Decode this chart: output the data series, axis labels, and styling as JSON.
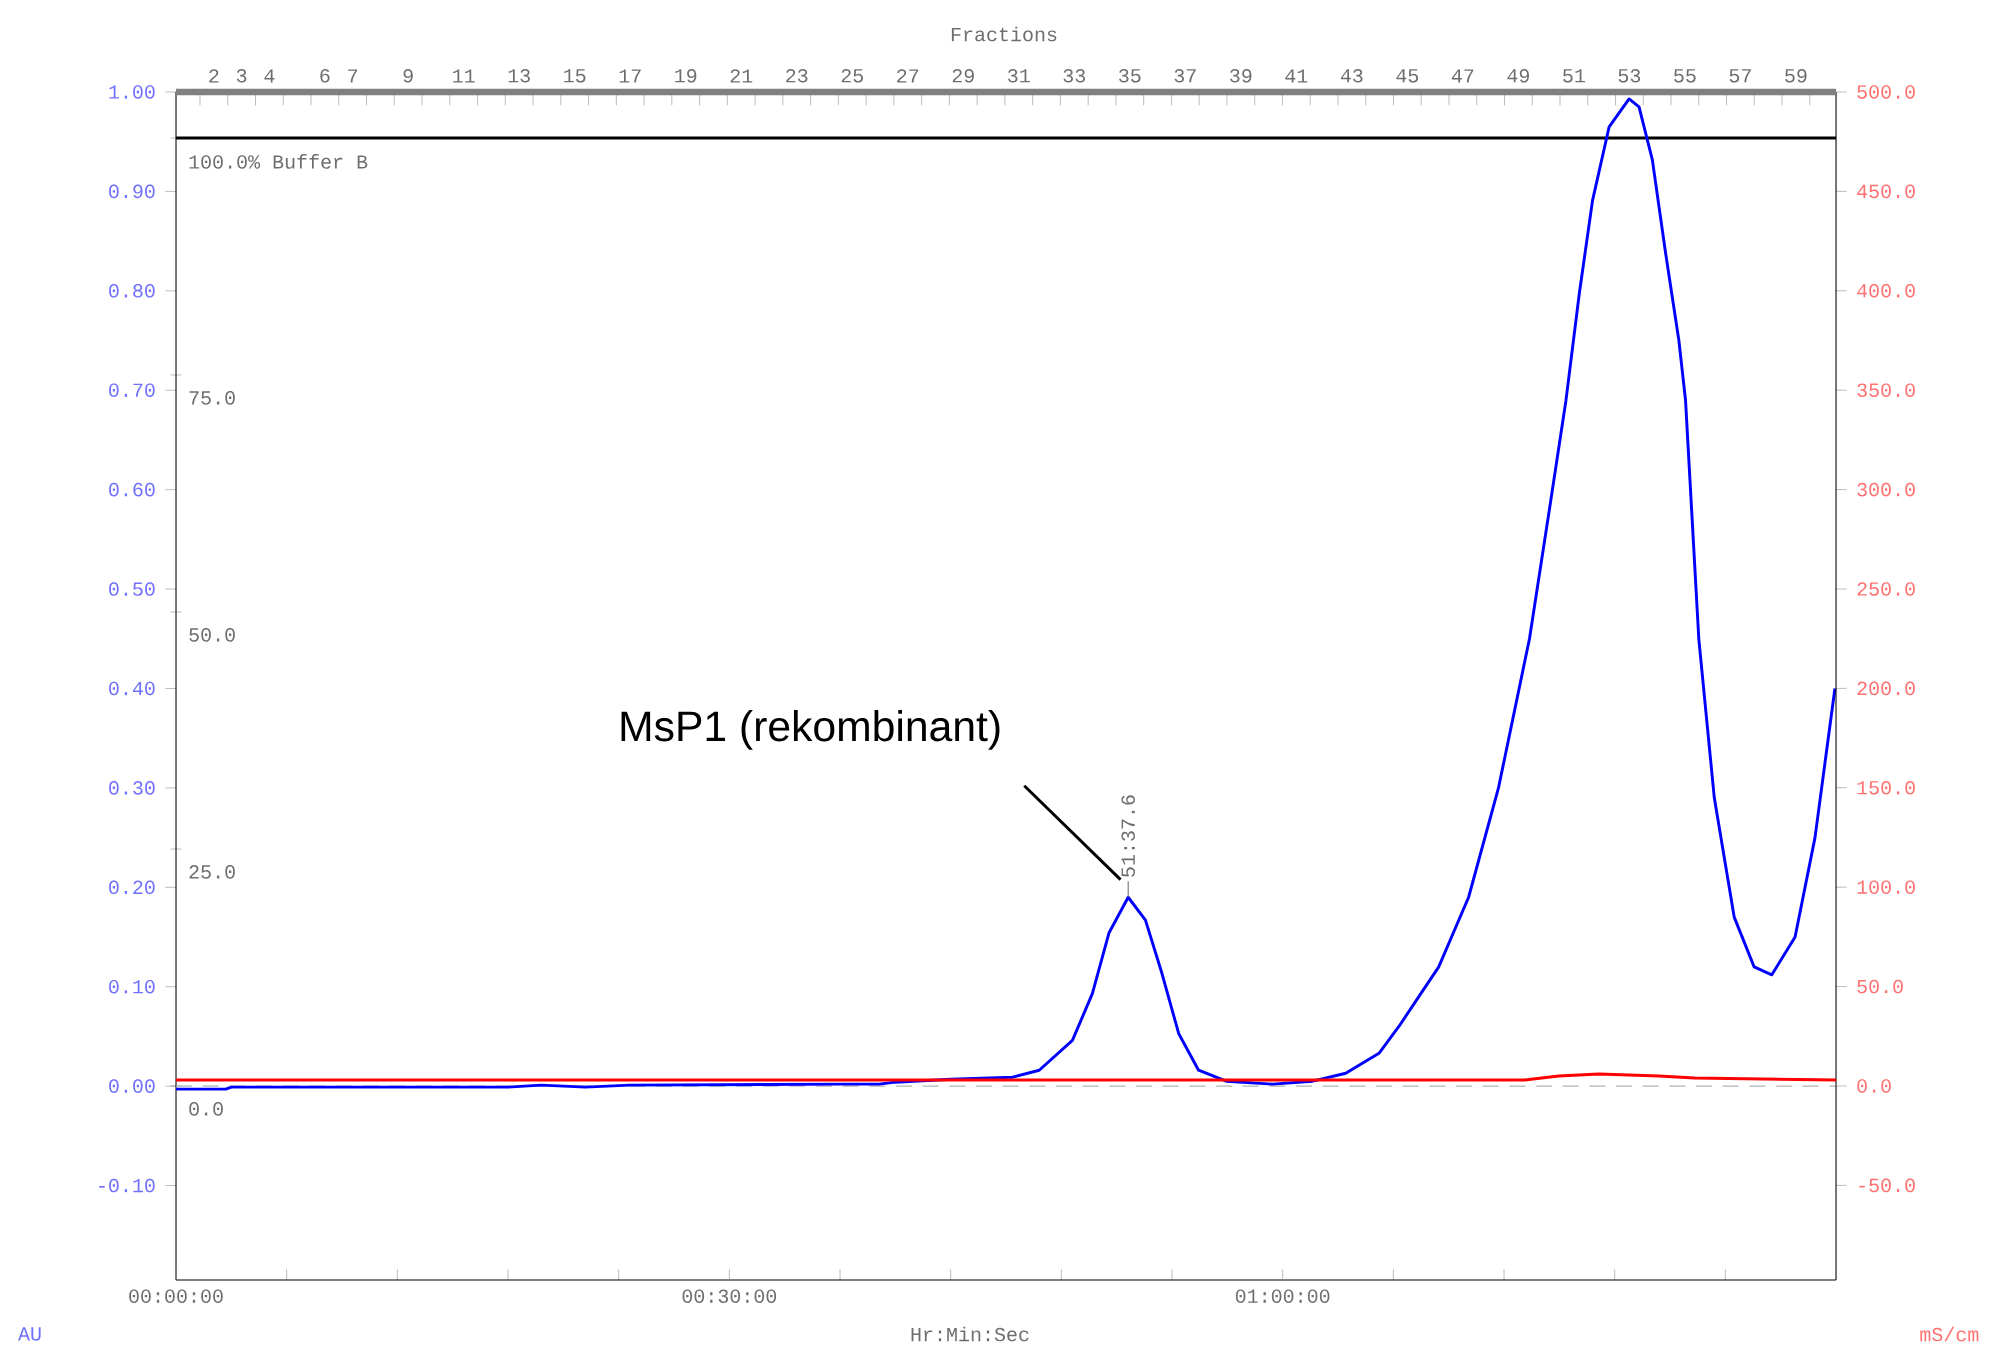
{
  "chart_data": {
    "type": "line",
    "xlabel": "Hr:Min:Sec",
    "ylabel": "AU",
    "y2label": "mS/cm",
    "x2label": "Fractions",
    "xlim": [
      0,
      1.5
    ],
    "xticks": [
      {
        "value": 0,
        "label": "00:00:00"
      },
      {
        "value": 0.1,
        "label": null
      },
      {
        "value": 0.2,
        "label": null
      },
      {
        "value": 0.3,
        "label": null
      },
      {
        "value": 0.4,
        "label": null
      },
      {
        "value": 0.5,
        "label": "00:30:00"
      },
      {
        "value": 0.6,
        "label": null
      },
      {
        "value": 0.7,
        "label": null
      },
      {
        "value": 0.8,
        "label": null
      },
      {
        "value": 0.9,
        "label": null
      },
      {
        "value": 1.0,
        "label": "01:00:00"
      },
      {
        "value": 1.1,
        "label": null
      },
      {
        "value": 1.2,
        "label": null
      },
      {
        "value": 1.3,
        "label": null
      },
      {
        "value": 1.4,
        "label": null
      }
    ],
    "x2lim": [
      0.636,
      60.445
    ],
    "x2ticks": [
      {
        "value": 1.5,
        "label": null
      },
      {
        "value": 2.5,
        "label": null
      },
      {
        "value": 3.5,
        "label": null
      },
      {
        "value": 4.5,
        "label": null
      },
      {
        "value": 5.5,
        "label": null
      },
      {
        "value": 6.5,
        "label": null
      },
      {
        "value": 7.5,
        "label": null
      },
      {
        "value": 8.5,
        "label": null
      },
      {
        "value": 9.5,
        "label": null
      },
      {
        "value": 10.5,
        "label": null
      },
      {
        "value": 11.5,
        "label": null
      },
      {
        "value": 12.5,
        "label": null
      },
      {
        "value": 13.5,
        "label": null
      },
      {
        "value": 14.5,
        "label": null
      },
      {
        "value": 15.5,
        "label": null
      },
      {
        "value": 16.5,
        "label": null
      },
      {
        "value": 17.5,
        "label": null
      },
      {
        "value": 18.5,
        "label": null
      },
      {
        "value": 19.5,
        "label": null
      },
      {
        "value": 20.5,
        "label": null
      },
      {
        "value": 21.5,
        "label": null
      },
      {
        "value": 22.5,
        "label": null
      },
      {
        "value": 23.5,
        "label": null
      },
      {
        "value": 24.5,
        "label": null
      },
      {
        "value": 25.5,
        "label": null
      },
      {
        "value": 26.5,
        "label": null
      },
      {
        "value": 27.5,
        "label": null
      },
      {
        "value": 28.5,
        "label": null
      },
      {
        "value": 29.5,
        "label": null
      },
      {
        "value": 30.5,
        "label": null
      },
      {
        "value": 31.5,
        "label": null
      },
      {
        "value": 32.5,
        "label": null
      },
      {
        "value": 33.5,
        "label": null
      },
      {
        "value": 34.5,
        "label": null
      },
      {
        "value": 35.5,
        "label": null
      },
      {
        "value": 36.5,
        "label": null
      },
      {
        "value": 37.5,
        "label": null
      },
      {
        "value": 38.5,
        "label": null
      },
      {
        "value": 39.5,
        "label": null
      },
      {
        "value": 40.5,
        "label": null
      },
      {
        "value": 41.5,
        "label": null
      },
      {
        "value": 42.5,
        "label": null
      },
      {
        "value": 43.5,
        "label": null
      },
      {
        "value": 44.5,
        "label": null
      },
      {
        "value": 45.5,
        "label": null
      },
      {
        "value": 46.5,
        "label": null
      },
      {
        "value": 47.5,
        "label": null
      },
      {
        "value": 48.5,
        "label": null
      },
      {
        "value": 49.5,
        "label": null
      },
      {
        "value": 50.5,
        "label": null
      },
      {
        "value": 51.5,
        "label": null
      },
      {
        "value": 52.5,
        "label": null
      },
      {
        "value": 53.5,
        "label": null
      },
      {
        "value": 54.5,
        "label": null
      },
      {
        "value": 55.5,
        "label": null
      },
      {
        "value": 56.5,
        "label": null
      },
      {
        "value": 57.5,
        "label": null
      },
      {
        "value": 58.5,
        "label": null
      },
      {
        "value": 59.5,
        "label": null
      },
      2,
      3,
      4,
      6,
      7,
      9,
      11,
      13,
      15,
      17,
      19,
      21,
      23,
      25,
      27,
      29,
      31,
      33,
      35,
      37,
      39,
      41,
      43,
      45,
      47,
      49,
      51,
      53,
      55,
      57,
      59
    ],
    "ylim": [
      -0.195,
      1.0
    ],
    "yticks": [
      {
        "value": -0.1,
        "label": "-0.10"
      },
      {
        "value": 0,
        "label": "0.00"
      },
      {
        "value": 0.1,
        "label": "0.10"
      },
      {
        "value": 0.2,
        "label": "0.20"
      },
      {
        "value": 0.3,
        "label": "0.30"
      },
      {
        "value": 0.4,
        "label": "0.40"
      },
      {
        "value": 0.5,
        "label": "0.50"
      },
      {
        "value": 0.6,
        "label": "0.60"
      },
      {
        "value": 0.7,
        "label": "0.70"
      },
      {
        "value": 0.8,
        "label": "0.80"
      },
      {
        "value": 0.9,
        "label": "0.90"
      },
      {
        "value": 1.0,
        "label": "1.00"
      }
    ],
    "y2lim": [
      -97.6,
      500
    ],
    "y2ticks": [
      {
        "value": -50,
        "label": "-50.0"
      },
      {
        "value": 0,
        "label": "0.0"
      },
      {
        "value": 50,
        "label": "50.0"
      },
      {
        "value": 100,
        "label": "100.0"
      },
      {
        "value": 150,
        "label": "150.0"
      },
      {
        "value": 200,
        "label": "200.0"
      },
      {
        "value": 250,
        "label": "250.0"
      },
      {
        "value": 300,
        "label": "300.0"
      },
      {
        "value": 350,
        "label": "350.0"
      },
      {
        "value": 400,
        "label": "400.0"
      },
      {
        "value": 450,
        "label": "450.0"
      },
      {
        "value": 500,
        "label": "500.0"
      }
    ],
    "y3lim": [
      -20.46,
      104.85
    ],
    "y3ticks": [
      {
        "value": 0,
        "label": "0.0"
      },
      {
        "value": 25,
        "label": "25.0"
      },
      {
        "value": 50,
        "label": "50.0"
      },
      {
        "value": 75,
        "label": "75.0"
      },
      {
        "value": 100,
        "label": "100.0% Buffer B"
      }
    ],
    "series": [
      {
        "color": "#000000",
        "axis": "y3",
        "x": [
          0,
          1.5
        ],
        "values": [
          100,
          100
        ]
      },
      {
        "color": "#0000ff",
        "x": [
          0,
          0.045,
          0.05,
          0.3,
          0.33,
          0.37,
          0.41,
          0.6,
          0.6356,
          0.65,
          0.7,
          0.756,
          0.78,
          0.81,
          0.828,
          0.843,
          0.8604,
          0.876,
          0.891,
          0.906,
          0.924,
          0.949,
          0.991,
          1.027,
          1.057,
          1.087,
          1.105,
          1.123,
          1.141,
          1.168,
          1.195,
          1.223,
          1.241,
          1.256,
          1.268,
          1.28,
          1.295,
          1.313,
          1.322,
          1.334,
          1.346,
          1.358,
          1.364,
          1.376,
          1.39,
          1.408,
          1.426,
          1.442,
          1.463,
          1.481,
          1.499
        ],
        "values": [
          -0.003,
          -0.003,
          -0.001,
          -0.001,
          0.001,
          -0.001,
          0.001,
          0.002,
          0.002,
          0.004,
          0.007,
          0.009,
          0.016,
          0.046,
          0.093,
          0.154,
          0.19,
          0.167,
          0.113,
          0.053,
          0.016,
          0.005,
          0.002,
          0.005,
          0.013,
          0.033,
          0.06,
          0.09,
          0.12,
          0.19,
          0.3,
          0.45,
          0.58,
          0.69,
          0.797,
          0.891,
          0.965,
          0.993,
          0.985,
          0.932,
          0.838,
          0.75,
          0.69,
          0.45,
          0.29,
          0.17,
          0.12,
          0.112,
          0.15,
          0.25,
          0.4
        ]
      },
      {
        "color": "#ff0000",
        "axis": "y2",
        "x": [
          0,
          1.2188,
          1.2495,
          1.2856,
          1.3398,
          1.3723,
          1.5
        ],
        "values": [
          3,
          3,
          5,
          6,
          5,
          4,
          3
        ]
      }
    ],
    "ref_lines": [
      {
        "axis": "y",
        "value": 0,
        "color": "#b4b4b4",
        "line_style": "dashed"
      }
    ],
    "annotations": [
      {
        "text": "51:37.6",
        "x": 0.8604,
        "y": 0.19
      },
      "MsP1 (rekombinant)"
    ]
  }
}
